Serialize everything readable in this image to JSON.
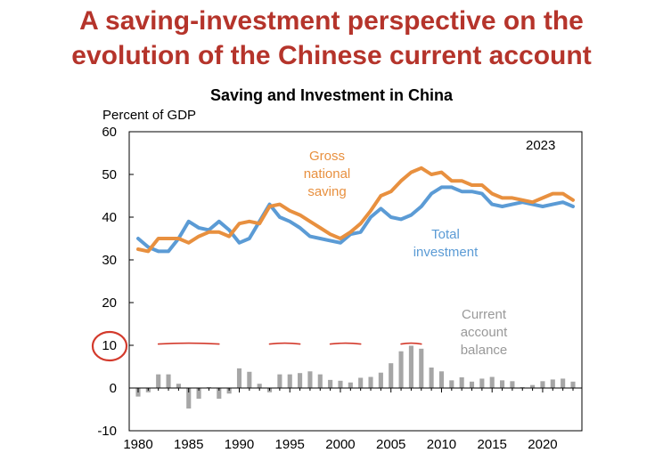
{
  "slide": {
    "title_line1": "A saving-investment perspective on the",
    "title_line2": "evolution of the Chinese current account"
  },
  "chart_data": {
    "type": "line",
    "title": "Saving and Investment in China",
    "ylabel": "Percent of GDP",
    "xlabel": "",
    "ylim": [
      -10,
      60
    ],
    "xlim": [
      1980,
      2023
    ],
    "x_ticks": [
      1980,
      1985,
      1990,
      1995,
      2000,
      2005,
      2010,
      2015,
      2020
    ],
    "y_ticks": [
      -10,
      0,
      10,
      20,
      30,
      40,
      50,
      60
    ],
    "grid": false,
    "year_note": "2023",
    "colors": {
      "saving": "#e8903f",
      "investment": "#5b9bd5",
      "balance": "#a6a6a6",
      "annotation": "#d33a2c"
    },
    "series": [
      {
        "key": "saving",
        "name_lines": [
          "Gross",
          "national",
          "saving"
        ],
        "color": "#e8903f",
        "x": [
          1980,
          1981,
          1982,
          1983,
          1984,
          1985,
          1986,
          1987,
          1988,
          1989,
          1990,
          1991,
          1992,
          1993,
          1994,
          1995,
          1996,
          1997,
          1998,
          1999,
          2000,
          2001,
          2002,
          2003,
          2004,
          2005,
          2006,
          2007,
          2008,
          2009,
          2010,
          2011,
          2012,
          2013,
          2014,
          2015,
          2016,
          2017,
          2018,
          2019,
          2020,
          2021,
          2022,
          2023
        ],
        "values": [
          32.5,
          32.0,
          35.0,
          35.0,
          35.0,
          34.0,
          35.5,
          36.5,
          36.5,
          35.5,
          38.5,
          39.0,
          38.5,
          42.5,
          43.0,
          41.5,
          40.5,
          39.0,
          37.5,
          36.0,
          35.0,
          36.5,
          38.5,
          41.5,
          45.0,
          46.0,
          48.5,
          50.5,
          51.5,
          50.0,
          50.5,
          48.5,
          48.5,
          47.5,
          47.5,
          45.5,
          44.5,
          44.5,
          44.0,
          43.5,
          44.5,
          45.5,
          45.5,
          44.0
        ]
      },
      {
        "key": "investment",
        "name_lines": [
          "Total",
          "investment"
        ],
        "color": "#5b9bd5",
        "x": [
          1980,
          1981,
          1982,
          1983,
          1984,
          1985,
          1986,
          1987,
          1988,
          1989,
          1990,
          1991,
          1992,
          1993,
          1994,
          1995,
          1996,
          1997,
          1998,
          1999,
          2000,
          2001,
          2002,
          2003,
          2004,
          2005,
          2006,
          2007,
          2008,
          2009,
          2010,
          2011,
          2012,
          2013,
          2014,
          2015,
          2016,
          2017,
          2018,
          2019,
          2020,
          2021,
          2022,
          2023
        ],
        "values": [
          35.0,
          33.0,
          32.0,
          32.0,
          35.0,
          39.0,
          37.5,
          37.0,
          39.0,
          37.0,
          34.0,
          35.0,
          39.0,
          43.0,
          40.0,
          39.0,
          37.5,
          35.5,
          35.0,
          34.5,
          34.0,
          36.0,
          36.5,
          40.0,
          42.0,
          40.0,
          39.5,
          40.5,
          42.5,
          45.5,
          47.0,
          47.0,
          46.0,
          46.0,
          45.5,
          43.0,
          42.5,
          43.0,
          43.5,
          43.0,
          42.5,
          43.0,
          43.5,
          42.5
        ]
      },
      {
        "key": "balance",
        "name_lines": [
          "Current",
          "account",
          "balance"
        ],
        "color": "#a6a6a6",
        "x": [
          1980,
          1981,
          1982,
          1983,
          1984,
          1985,
          1986,
          1987,
          1988,
          1989,
          1990,
          1991,
          1992,
          1993,
          1994,
          1995,
          1996,
          1997,
          1998,
          1999,
          2000,
          2001,
          2002,
          2003,
          2004,
          2005,
          2006,
          2007,
          2008,
          2009,
          2010,
          2011,
          2012,
          2013,
          2014,
          2015,
          2016,
          2017,
          2018,
          2019,
          2020,
          2021,
          2022,
          2023
        ],
        "values": [
          -2.0,
          -1.0,
          3.2,
          3.2,
          1.0,
          -4.8,
          -2.5,
          0.2,
          -2.5,
          -1.3,
          4.6,
          3.8,
          1.0,
          -1.0,
          3.2,
          3.2,
          3.5,
          3.9,
          3.2,
          1.9,
          1.7,
          1.3,
          2.4,
          2.6,
          3.6,
          5.8,
          8.6,
          9.9,
          9.2,
          4.8,
          3.9,
          1.8,
          2.5,
          1.5,
          2.2,
          2.6,
          1.8,
          1.6,
          0.2,
          0.7,
          1.6,
          2.0,
          2.2,
          1.5
        ]
      }
    ]
  },
  "annotation": {
    "circled_value": "10",
    "dashed_segments": [
      [
        1982,
        1988
      ],
      [
        1993,
        1996
      ],
      [
        1999,
        2002
      ],
      [
        2006,
        2008
      ]
    ],
    "dashed_level": 10.5
  }
}
